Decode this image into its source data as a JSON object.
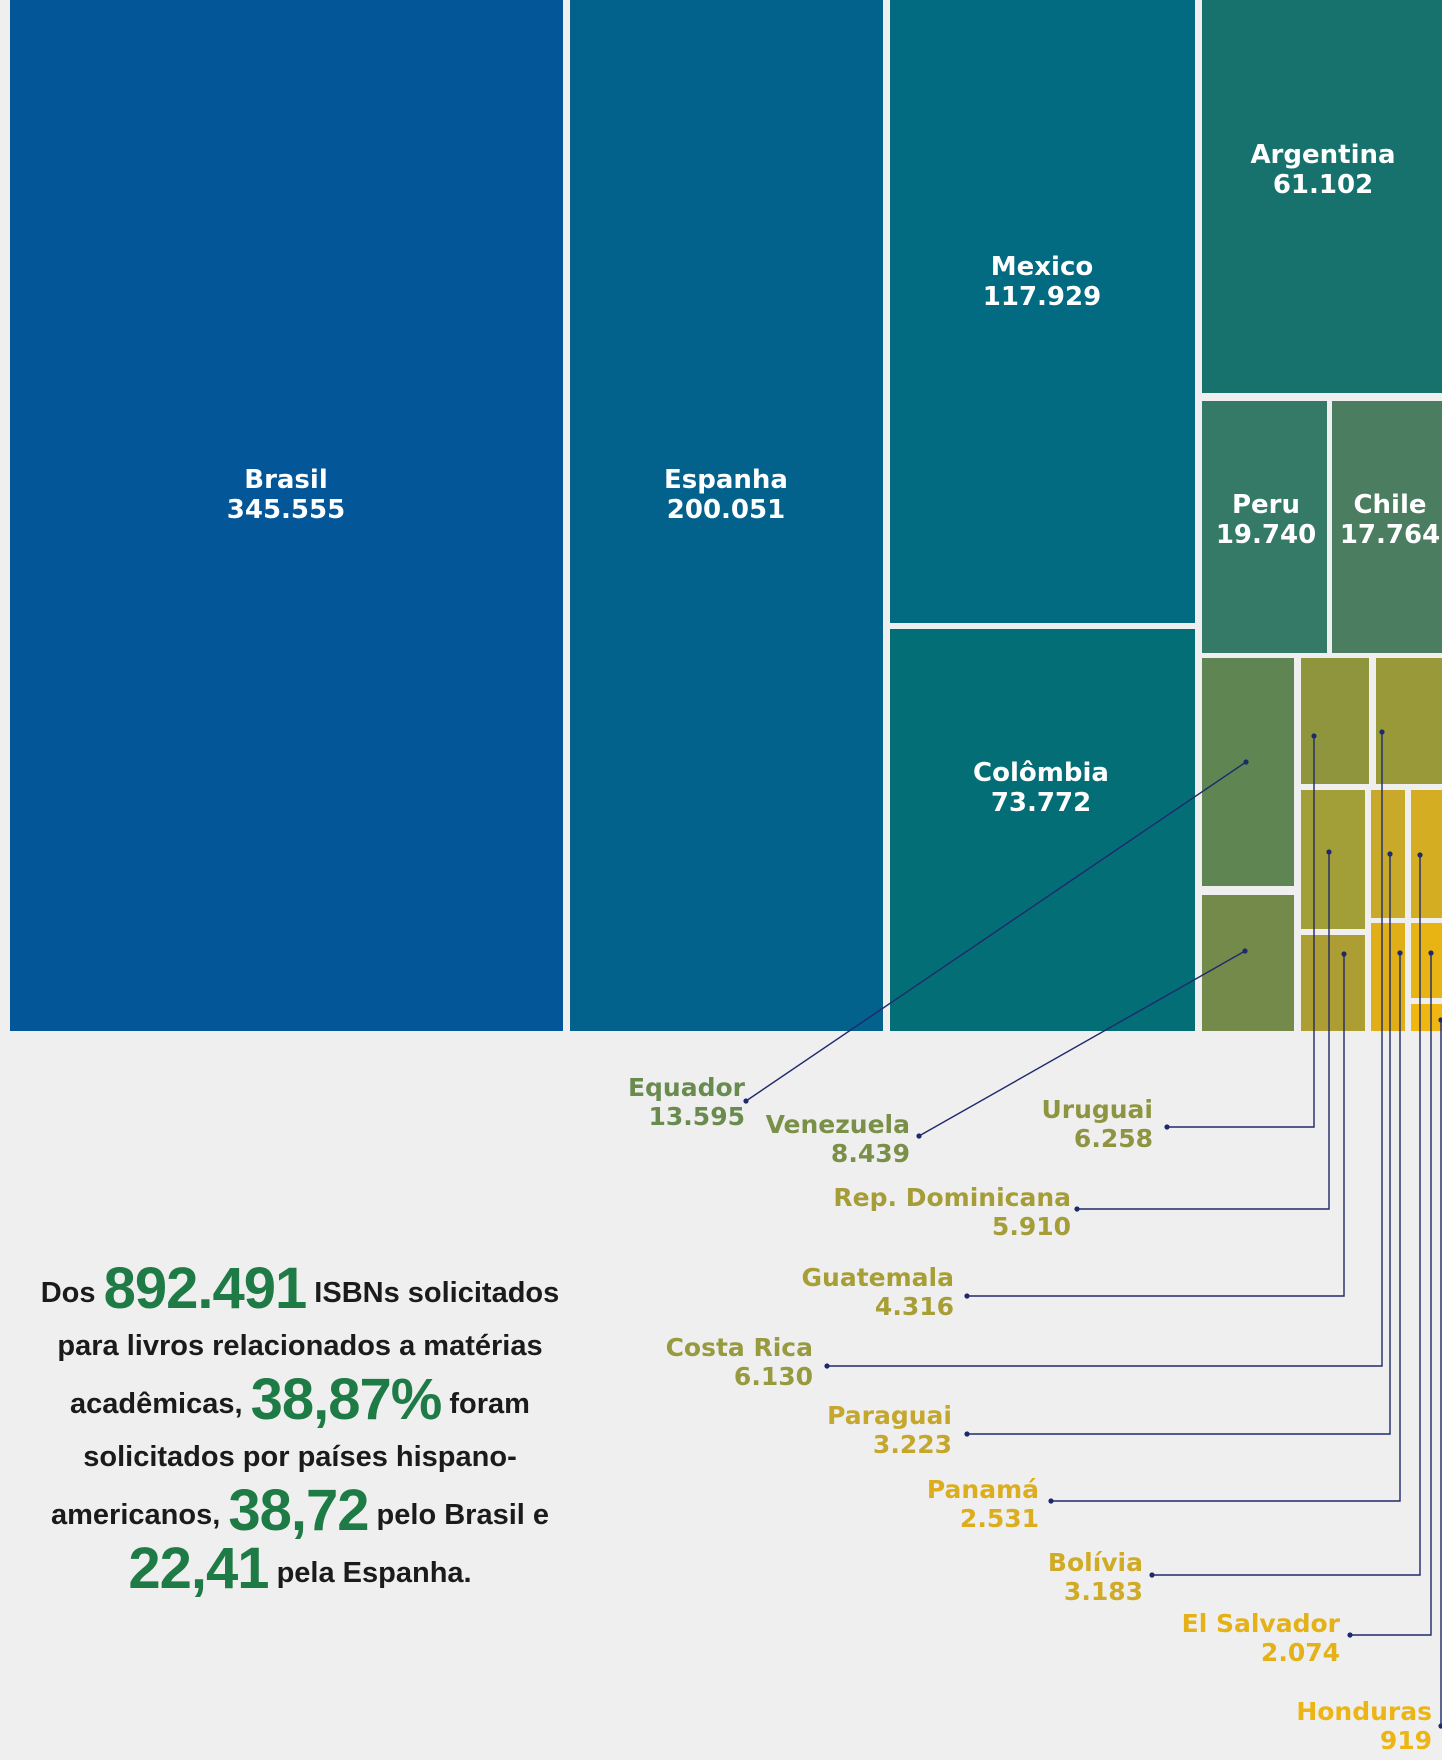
{
  "chart_data": {
    "type": "treemap",
    "colors": {
      "background": "#efefef",
      "leader_line": "#1f2a6b",
      "summary_highlight": "#1e7b45"
    },
    "items": [
      {
        "name": "Brasil",
        "value_label": "345.555",
        "value": 345555,
        "color": "#035799"
      },
      {
        "name": "Espanha",
        "value_label": "200.051",
        "value": 200051,
        "color": "#03628c"
      },
      {
        "name": "Mexico",
        "value_label": "117.929",
        "value": 117929,
        "color": "#026a81"
      },
      {
        "name": "Colômbia",
        "value_label": "73.772",
        "value": 73772,
        "color": "#046e76"
      },
      {
        "name": "Argentina",
        "value_label": "61.102",
        "value": 61102,
        "color": "#17716d"
      },
      {
        "name": "Peru",
        "value_label": "19.740",
        "value": 19740,
        "color": "#357967"
      },
      {
        "name": "Chile",
        "value_label": "17.764",
        "value": 17764,
        "color": "#4b7e60"
      },
      {
        "name": "Equador",
        "value_label": "13.595",
        "value": 13595,
        "color": "#5f8553",
        "label_color": "#6a8b4f"
      },
      {
        "name": "Venezuela",
        "value_label": "8.439",
        "value": 8439,
        "color": "#748a4b",
        "label_color": "#7a8f47"
      },
      {
        "name": "Uruguai",
        "value_label": "6.258",
        "value": 6258,
        "color": "#8f953d",
        "label_color": "#8e9440"
      },
      {
        "name": "Costa Rica",
        "value_label": "6.130",
        "value": 6130,
        "color": "#99993a",
        "label_color": "#979a3e"
      },
      {
        "name": "Rep. Dominicana",
        "value_label": "5.910",
        "value": 5910,
        "color": "#a39f38",
        "label_color": "#a49d38"
      },
      {
        "name": "Guatemala",
        "value_label": "4.316",
        "value": 4316,
        "color": "#ad9e33",
        "label_color": "#a79f36"
      },
      {
        "name": "Paraguai",
        "value_label": "3.223",
        "value": 3223,
        "color": "#c9a92a",
        "label_color": "#c4a72c"
      },
      {
        "name": "Bolívia",
        "value_label": "3.183",
        "value": 3183,
        "color": "#d4ad22",
        "label_color": "#cfab26"
      },
      {
        "name": "Panamá",
        "value_label": "2.531",
        "value": 2531,
        "color": "#e0af18",
        "label_color": "#dcad1c"
      },
      {
        "name": "El Salvador",
        "value_label": "2.074",
        "value": 2074,
        "color": "#e8b414",
        "label_color": "#e4b218"
      },
      {
        "name": "Honduras",
        "value_label": "919",
        "value": 919,
        "color": "#efb70f",
        "label_color": "#ecb514"
      }
    ]
  },
  "summary": {
    "t1": "Dos ",
    "total": "892.491",
    "t2": " ISBNs solicitados para livros relacionados a matérias acadêmicas, ",
    "pct_hisp": "38,87%",
    "t3": " foram solicitados por países hispano-americanos, ",
    "pct_brasil": "38,72",
    "t4": " pelo Brasil e ",
    "pct_espanha": "22,41",
    "t5": " pela Espanha."
  }
}
